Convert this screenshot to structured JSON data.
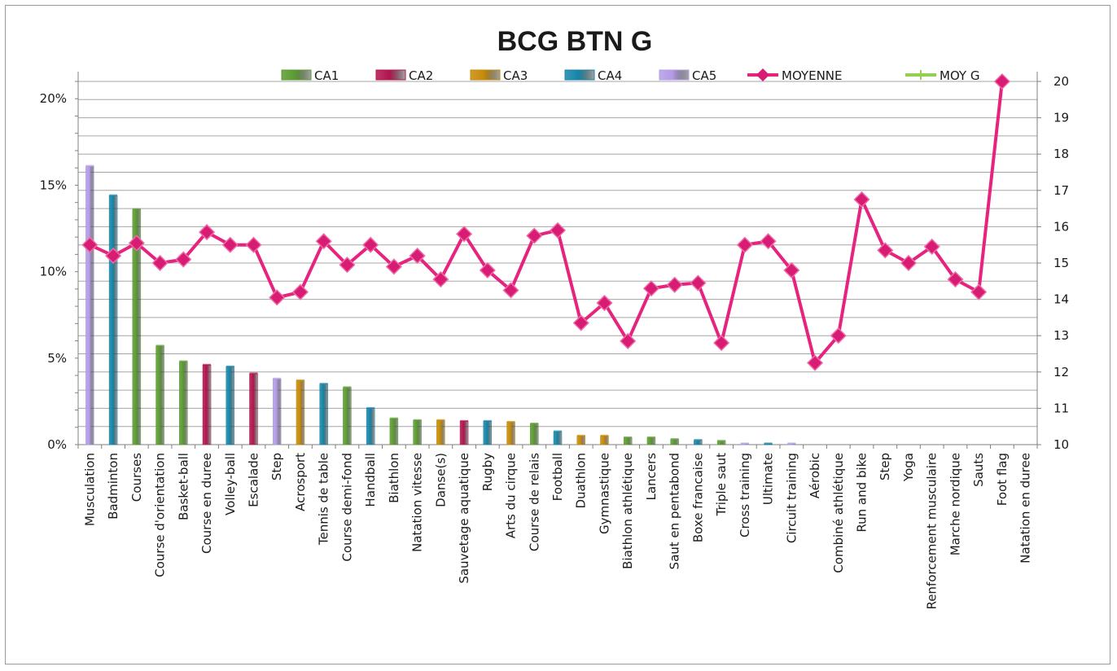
{
  "chart_data": {
    "type": "bar+line",
    "title": "BCG BTN G",
    "categories": [
      "Musculation",
      "Badminton",
      "Courses",
      "Course d'orientation",
      "Basket-ball",
      "Course en duree",
      "Volley-ball",
      "Escalade",
      "Step",
      "Acrosport",
      "Tennis de table",
      "Course demi-fond",
      "Handball",
      "Biathlon",
      "Natation vitesse",
      "Danse(s)",
      "Sauvetage aquatique",
      "Rugby",
      "Arts du cirque",
      "Course de relais",
      "Football",
      "Duathlon",
      "Gymnastique",
      "Biathlon athlétique",
      "Lancers",
      "Saut en pentabond",
      "Boxe francaise",
      "Triple saut",
      "Cross training",
      "Ultimate",
      "Circuit training",
      "Aérobic",
      "Combiné athlétique",
      "Run and bike",
      "Step",
      "Yoga",
      "Renforcement musculaire",
      "Marche nordique",
      "Sauts",
      "Foot flag",
      "Natation en duree"
    ],
    "bar_groups": [
      "CA5",
      "CA4",
      "CA1",
      "CA1",
      "CA1",
      "CA2",
      "CA4",
      "CA2",
      "CA5",
      "CA3",
      "CA4",
      "CA1",
      "CA4",
      "CA1",
      "CA1",
      "CA3",
      "CA2",
      "CA4",
      "CA3",
      "CA1",
      "CA4",
      "CA3",
      "CA3",
      "CA1",
      "CA1",
      "CA1",
      "CA4",
      "CA1",
      "CA5",
      "CA4",
      "CA5",
      "",
      "",
      "",
      "",
      "",
      "",
      "",
      "",
      "",
      ""
    ],
    "bar_values_pct": [
      16.1,
      14.4,
      13.6,
      5.7,
      4.8,
      4.6,
      4.5,
      4.1,
      3.8,
      3.7,
      3.5,
      3.3,
      2.1,
      1.5,
      1.4,
      1.4,
      1.35,
      1.35,
      1.3,
      1.2,
      0.75,
      0.5,
      0.5,
      0.4,
      0.4,
      0.3,
      0.25,
      0.2,
      0.05,
      0.05,
      0.05,
      0,
      0,
      0,
      0,
      0,
      0,
      0,
      0,
      0,
      0
    ],
    "moyenne": [
      15.5,
      15.2,
      15.55,
      15.0,
      15.1,
      15.85,
      15.5,
      15.5,
      14.05,
      14.2,
      15.6,
      14.95,
      15.5,
      14.9,
      15.2,
      14.55,
      15.8,
      14.8,
      14.25,
      15.75,
      15.9,
      13.35,
      13.9,
      12.85,
      14.3,
      14.4,
      14.45,
      12.8,
      15.5,
      15.6,
      14.8,
      12.25,
      13.0,
      16.75,
      15.35,
      15.0,
      15.45,
      14.55,
      14.2,
      20.0,
      null
    ],
    "y_left": {
      "min": 0,
      "max": 21,
      "ticks": [
        0,
        5,
        10,
        15,
        20
      ],
      "tick_labels": [
        "0%",
        "5%",
        "10%",
        "15%",
        "20%"
      ]
    },
    "y_right": {
      "min": 10,
      "max": 20,
      "ticks": [
        10,
        11,
        12,
        13,
        14,
        15,
        16,
        17,
        18,
        19,
        20
      ],
      "tick_labels": [
        "10",
        "11",
        "12",
        "13",
        "14",
        "15",
        "16",
        "17",
        "18",
        "19",
        "20"
      ]
    },
    "series": [
      {
        "name": "CA1",
        "kind": "bar",
        "color": "#5a9b2f"
      },
      {
        "name": "CA2",
        "kind": "bar",
        "color": "#b3134e"
      },
      {
        "name": "CA3",
        "kind": "bar",
        "color": "#c68a06"
      },
      {
        "name": "CA4",
        "kind": "bar",
        "color": "#1585a8"
      },
      {
        "name": "CA5",
        "kind": "bar",
        "color": "#b39be6"
      },
      {
        "name": "MOYENNE",
        "kind": "line",
        "color": "#e6247f"
      },
      {
        "name": "MOY G",
        "kind": "line",
        "color": "#92d050"
      }
    ],
    "grid": true,
    "legend_position": "top"
  }
}
